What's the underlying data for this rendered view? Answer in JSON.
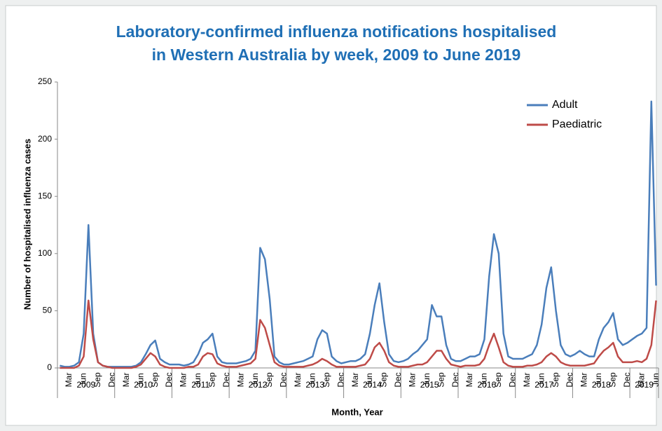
{
  "chart_data": {
    "type": "line",
    "title": [
      "Laboratory-confirmed influenza notifications hospitalised",
      "in Western Australia by week, 2009 to June 2019"
    ],
    "y_label": "Number of hospitalised influenza cases",
    "x_label": "Month, Year",
    "categories": [
      null,
      null,
      "Mar",
      null,
      null,
      "Jun",
      null,
      null,
      "Sep",
      null,
      null,
      "Dec",
      null,
      null,
      "Mar",
      null,
      null,
      "Jun",
      null,
      null,
      "Sep",
      null,
      null,
      "Dec",
      null,
      null,
      "Mar",
      null,
      null,
      "Jun",
      null,
      null,
      "Sep",
      null,
      null,
      "Dec",
      null,
      null,
      "Mar",
      null,
      null,
      "Jun",
      null,
      null,
      "Sep",
      null,
      null,
      "Dec",
      null,
      null,
      "Mar",
      null,
      null,
      "Jun",
      null,
      null,
      "Sep",
      null,
      null,
      "Dec",
      null,
      null,
      "Mar",
      null,
      null,
      "Jun",
      null,
      null,
      "Sep",
      null,
      null,
      "Dec",
      null,
      null,
      "Mar",
      null,
      null,
      "Jun",
      null,
      null,
      "Sep",
      null,
      null,
      "Dec",
      null,
      null,
      "Mar",
      null,
      null,
      "Jun",
      null,
      null,
      "Sep",
      null,
      null,
      "Dec",
      null,
      null,
      "Mar",
      null,
      null,
      "Jun",
      null,
      null,
      "Sep",
      null,
      null,
      "Dec",
      null,
      null,
      "Mar",
      null,
      null,
      "Jun",
      null,
      null,
      "Sep",
      null,
      null,
      "Dec",
      null,
      null,
      "Mar",
      null,
      null,
      "Jun"
    ],
    "years": [
      "2009",
      "2010",
      "2011",
      "2012",
      "2013",
      "2014",
      "2015",
      "2016",
      "2017",
      "2018",
      "2019"
    ],
    "series": [
      {
        "name": "Adult",
        "color": "#4a7ebb",
        "values": [
          2,
          1,
          1,
          2,
          5,
          30,
          125,
          30,
          5,
          2,
          1,
          1,
          1,
          1,
          1,
          1,
          2,
          5,
          12,
          20,
          24,
          8,
          5,
          3,
          3,
          3,
          2,
          3,
          5,
          12,
          22,
          25,
          30,
          10,
          5,
          4,
          4,
          4,
          5,
          6,
          8,
          15,
          105,
          95,
          60,
          10,
          5,
          3,
          3,
          4,
          5,
          6,
          8,
          10,
          25,
          33,
          30,
          10,
          6,
          4,
          5,
          6,
          6,
          8,
          12,
          30,
          55,
          74,
          40,
          12,
          6,
          5,
          6,
          8,
          12,
          15,
          20,
          25,
          55,
          45,
          45,
          20,
          8,
          6,
          6,
          8,
          10,
          10,
          12,
          25,
          80,
          117,
          100,
          30,
          10,
          8,
          8,
          8,
          10,
          12,
          20,
          38,
          70,
          88,
          50,
          20,
          12,
          10,
          12,
          15,
          12,
          10,
          10,
          25,
          35,
          40,
          48,
          25,
          20,
          22,
          25,
          28,
          30,
          35,
          233,
          72
        ]
      },
      {
        "name": "Paediatric",
        "color": "#be4b48",
        "values": [
          0,
          0,
          0,
          0,
          2,
          10,
          59,
          25,
          5,
          2,
          1,
          0,
          0,
          0,
          0,
          0,
          1,
          3,
          8,
          13,
          10,
          3,
          1,
          0,
          0,
          0,
          0,
          1,
          1,
          3,
          10,
          13,
          12,
          4,
          2,
          1,
          1,
          1,
          2,
          3,
          4,
          8,
          42,
          35,
          20,
          5,
          2,
          1,
          1,
          1,
          1,
          1,
          2,
          3,
          5,
          8,
          6,
          3,
          1,
          1,
          1,
          1,
          1,
          2,
          3,
          8,
          18,
          22,
          15,
          5,
          2,
          1,
          1,
          1,
          2,
          3,
          3,
          5,
          10,
          15,
          15,
          8,
          3,
          2,
          1,
          2,
          2,
          2,
          3,
          8,
          20,
          30,
          18,
          5,
          2,
          1,
          1,
          1,
          2,
          2,
          3,
          5,
          10,
          13,
          10,
          5,
          3,
          2,
          2,
          2,
          2,
          3,
          4,
          10,
          15,
          18,
          22,
          10,
          5,
          5,
          5,
          6,
          5,
          8,
          20,
          59
        ]
      }
    ],
    "ylim": [
      0,
      250
    ],
    "yticks": [
      0,
      50,
      100,
      150,
      200,
      250
    ],
    "legend": "top-right",
    "grid": false
  }
}
